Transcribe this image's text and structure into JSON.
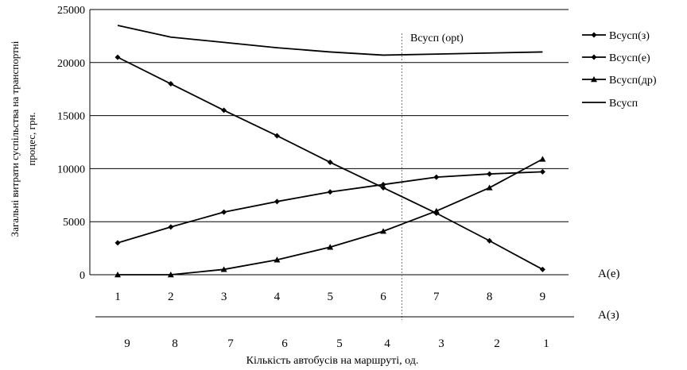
{
  "chart_data": {
    "type": "line",
    "ylabel_line1": "Загальні витрати суспільства на транспортні",
    "ylabel_line2": "процес, грн.",
    "xlabel": "Кількість автобусів на маршруті, од.",
    "ylim": [
      0,
      25000
    ],
    "y_ticks": [
      0,
      5000,
      10000,
      15000,
      20000,
      25000
    ],
    "x_top_axis_label": "A(е)",
    "x_bottom_axis_label": "A(з)",
    "x_top_ticks": [
      "1",
      "2",
      "3",
      "4",
      "5",
      "6",
      "7",
      "8",
      "9"
    ],
    "x_bottom_ticks": [
      "9",
      "8",
      "7",
      "6",
      "5",
      "4",
      "3",
      "2",
      "1"
    ],
    "optimum_label": "Bсусп (opt)",
    "optimum_x": 6.35,
    "grid": "horizontal",
    "legend_position": "right",
    "series": [
      {
        "name": "Bсусп(з)",
        "marker": "diamond",
        "values": [
          20500,
          18000,
          15500,
          13100,
          10600,
          8200,
          5800,
          3200,
          500
        ]
      },
      {
        "name": "Bсусп(е)",
        "marker": "diamond",
        "values": [
          3000,
          4500,
          5900,
          6900,
          7800,
          8500,
          9200,
          9500,
          9700
        ]
      },
      {
        "name": "Bсусп(др)",
        "marker": "triangle",
        "values": [
          0,
          0,
          500,
          1400,
          2600,
          4100,
          6000,
          8200,
          10900
        ]
      },
      {
        "name": "Bсусп",
        "marker": "none",
        "values": [
          23500,
          22400,
          21900,
          21400,
          21000,
          20700,
          20800,
          20900,
          21000
        ]
      }
    ]
  }
}
